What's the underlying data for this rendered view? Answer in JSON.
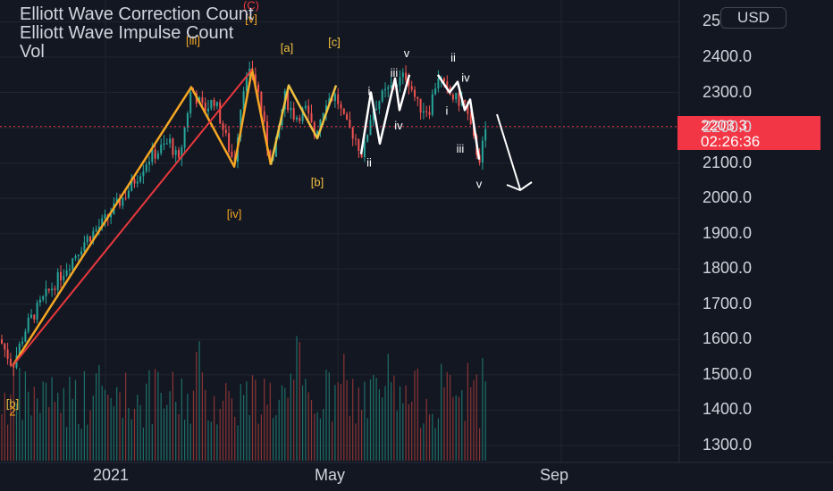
{
  "legend": {
    "line1": "Elliott Wave Correction Count",
    "line2": "Elliott Wave Impulse Count",
    "line3": "Vol"
  },
  "currency_button": "USD",
  "price_tag": {
    "price": "2203.3",
    "countdown": "02:26:36"
  },
  "colors": {
    "background": "#131722",
    "up": "#26a69a",
    "down": "#ef5350",
    "wave_orange": "#f5a623",
    "wave_yellow": "#f0c040",
    "wave_red": "#e8383d",
    "wave_white": "#ffffff",
    "price_line": "#f23645"
  },
  "chart_data": {
    "type": "candlestick",
    "y_ticks": [
      "2400.0",
      "2300.0",
      "2200.0",
      "2100.0",
      "2000.0",
      "1900.0",
      "1800.0",
      "1700.0",
      "1600.0",
      "1500.0",
      "1400.0",
      "1300.0"
    ],
    "y_partial_top_tick": "25",
    "ylim": [
      1250,
      2540
    ],
    "x_ticks": [
      "2021",
      "May",
      "Sep"
    ],
    "last_price": 2203.3,
    "wave_labels": [
      {
        "text": "(C)",
        "price": 2535,
        "color": "red"
      },
      {
        "text": "[v]",
        "price": 2497,
        "color": "orange"
      },
      {
        "text": "[iii]",
        "price": 2435,
        "color": "orange"
      },
      {
        "text": "[a]",
        "price": 2415,
        "color": "yellow"
      },
      {
        "text": "[c]",
        "price": 2432,
        "color": "yellow"
      },
      {
        "text": "[b]",
        "price": 2035,
        "color": "yellow"
      },
      {
        "text": "[iv]",
        "price": 1945,
        "color": "orange"
      },
      {
        "text": "[b]",
        "price": 1408,
        "color": "yellow"
      },
      {
        "text": "2",
        "price": 1385,
        "color": "orange"
      },
      {
        "text": "v",
        "price": 2400,
        "color": "white"
      },
      {
        "text": "ii",
        "price": 2387,
        "color": "white"
      },
      {
        "text": "iii",
        "price": 2345,
        "color": "white"
      },
      {
        "text": "iv",
        "price": 2330,
        "color": "white"
      },
      {
        "text": "i",
        "price": 2293,
        "color": "white"
      },
      {
        "text": "i",
        "price": 2237,
        "color": "white"
      },
      {
        "text": "iv",
        "price": 2195,
        "color": "white"
      },
      {
        "text": "iii",
        "price": 2130,
        "color": "white"
      },
      {
        "text": "ii",
        "price": 2090,
        "color": "white"
      },
      {
        "text": "v",
        "price": 2030,
        "color": "white"
      }
    ],
    "orange_wave": [
      1525,
      2315,
      2090,
      2365,
      2095
    ],
    "red_wave": [
      1525,
      2365
    ],
    "yellow_wave": [
      2095,
      2320,
      2170,
      2320
    ],
    "white_wave_1": [
      2125,
      2300,
      2155,
      2340,
      2250,
      2350
    ],
    "white_wave_2": [
      2350,
      2310,
      2280,
      2110
    ]
  }
}
